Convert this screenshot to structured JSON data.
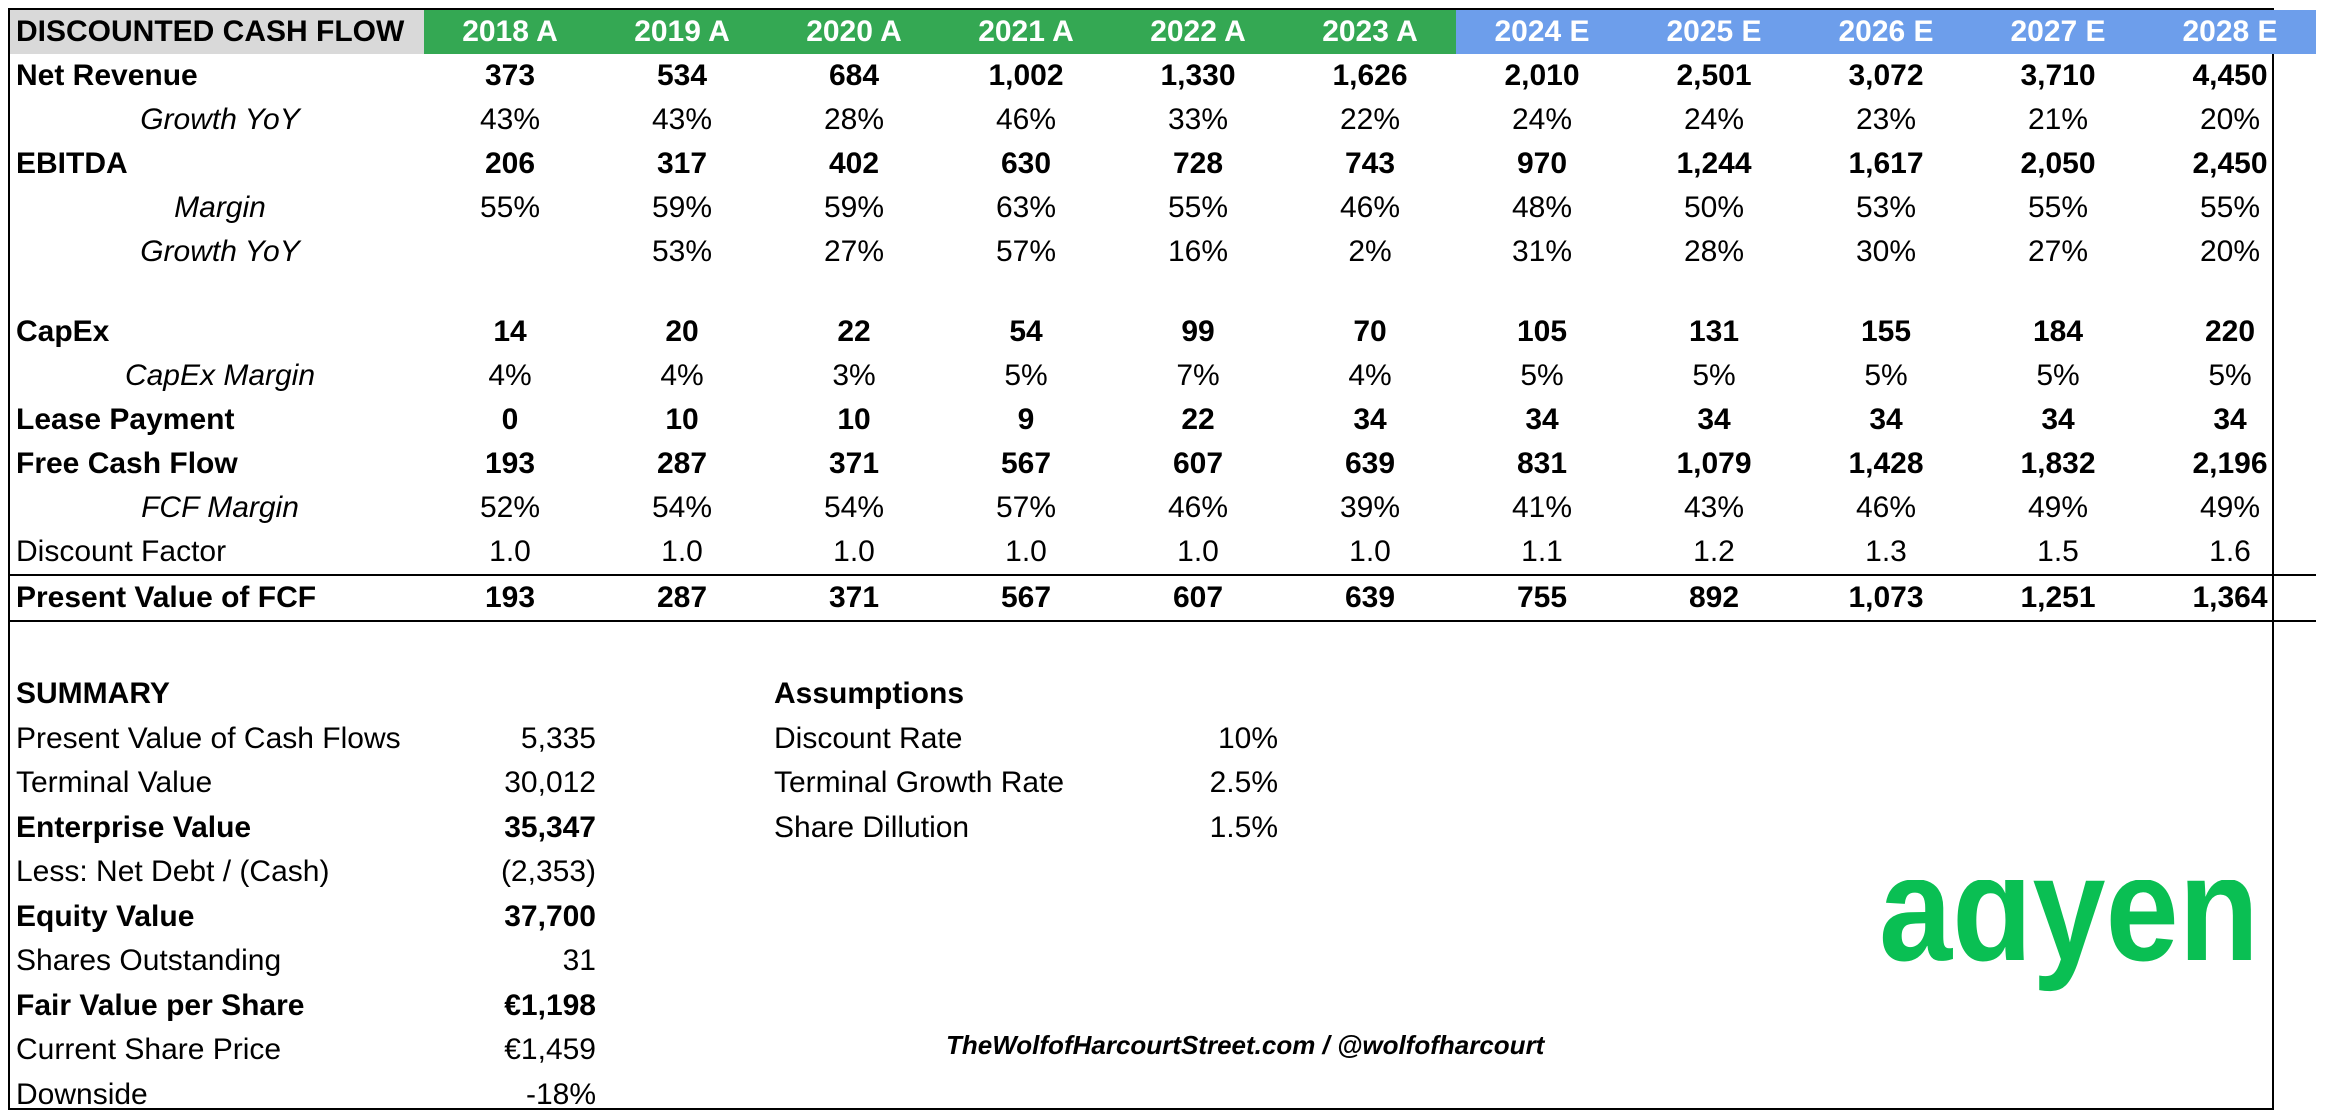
{
  "table": {
    "title": "DISCOUNTED CASH FLOW",
    "years": [
      {
        "label": "2018 A",
        "type": "actual"
      },
      {
        "label": "2019 A",
        "type": "actual"
      },
      {
        "label": "2020 A",
        "type": "actual"
      },
      {
        "label": "2021 A",
        "type": "actual"
      },
      {
        "label": "2022 A",
        "type": "actual"
      },
      {
        "label": "2023 A",
        "type": "actual"
      },
      {
        "label": "2024 E",
        "type": "estimate"
      },
      {
        "label": "2025 E",
        "type": "estimate"
      },
      {
        "label": "2026 E",
        "type": "estimate"
      },
      {
        "label": "2027 E",
        "type": "estimate"
      },
      {
        "label": "2028 E",
        "type": "estimate"
      }
    ],
    "rows": [
      {
        "label": "Net Revenue",
        "style": "bold",
        "values": [
          "373",
          "534",
          "684",
          "1,002",
          "1,330",
          "1,626",
          "2,010",
          "2,501",
          "3,072",
          "3,710",
          "4,450"
        ]
      },
      {
        "label": "Growth YoY",
        "style": "sub",
        "values": [
          "43%",
          "43%",
          "28%",
          "46%",
          "33%",
          "22%",
          "24%",
          "24%",
          "23%",
          "21%",
          "20%"
        ]
      },
      {
        "label": "EBITDA",
        "style": "bold",
        "values": [
          "206",
          "317",
          "402",
          "630",
          "728",
          "743",
          "970",
          "1,244",
          "1,617",
          "2,050",
          "2,450"
        ]
      },
      {
        "label": "Margin",
        "style": "sub",
        "values": [
          "55%",
          "59%",
          "59%",
          "63%",
          "55%",
          "46%",
          "48%",
          "50%",
          "53%",
          "55%",
          "55%"
        ]
      },
      {
        "label": "Growth YoY",
        "style": "sub",
        "values": [
          "",
          "53%",
          "27%",
          "57%",
          "16%",
          "2%",
          "31%",
          "28%",
          "30%",
          "27%",
          "20%"
        ]
      },
      {
        "label": "",
        "style": "spacer",
        "values": [
          "",
          "",
          "",
          "",
          "",
          "",
          "",
          "",
          "",
          "",
          ""
        ]
      },
      {
        "label": "CapEx",
        "style": "bold",
        "values": [
          "14",
          "20",
          "22",
          "54",
          "99",
          "70",
          "105",
          "131",
          "155",
          "184",
          "220"
        ]
      },
      {
        "label": "CapEx Margin",
        "style": "sub",
        "values": [
          "4%",
          "4%",
          "3%",
          "5%",
          "7%",
          "4%",
          "5%",
          "5%",
          "5%",
          "5%",
          "5%"
        ]
      },
      {
        "label": "Lease Payment",
        "style": "bold",
        "values": [
          "0",
          "10",
          "10",
          "9",
          "22",
          "34",
          "34",
          "34",
          "34",
          "34",
          "34"
        ]
      },
      {
        "label": "Free Cash Flow",
        "style": "bold",
        "values": [
          "193",
          "287",
          "371",
          "567",
          "607",
          "639",
          "831",
          "1,079",
          "1,428",
          "1,832",
          "2,196"
        ]
      },
      {
        "label": "FCF Margin",
        "style": "sub",
        "values": [
          "52%",
          "54%",
          "54%",
          "57%",
          "46%",
          "39%",
          "41%",
          "43%",
          "46%",
          "49%",
          "49%"
        ]
      },
      {
        "label": "Discount Factor",
        "style": "plain",
        "values": [
          "1.0",
          "1.0",
          "1.0",
          "1.0",
          "1.0",
          "1.0",
          "1.1",
          "1.2",
          "1.3",
          "1.5",
          "1.6"
        ]
      },
      {
        "label": "Present Value of FCF",
        "style": "pv",
        "values": [
          "193",
          "287",
          "371",
          "567",
          "607",
          "639",
          "755",
          "892",
          "1,073",
          "1,251",
          "1,364"
        ]
      }
    ]
  },
  "summary": {
    "heading": "SUMMARY",
    "rows": [
      {
        "label": "Present Value of Cash Flows",
        "value": "5,335",
        "bold": false
      },
      {
        "label": "Terminal Value",
        "value": "30,012",
        "bold": false
      },
      {
        "label": "Enterprise Value",
        "value": "35,347",
        "bold": true
      },
      {
        "label": "Less: Net Debt / (Cash)",
        "value": "(2,353)",
        "bold": false
      },
      {
        "label": "Equity Value",
        "value": "37,700",
        "bold": true
      },
      {
        "label": "Shares Outstanding",
        "value": "31",
        "bold": false
      },
      {
        "label": "Fair Value per Share",
        "value": "€1,198",
        "bold": true
      },
      {
        "label": "Current Share Price",
        "value": "€1,459",
        "bold": false
      },
      {
        "label": "Downside",
        "value": "-18%",
        "bold": false
      }
    ]
  },
  "assumptions": {
    "heading": "Assumptions",
    "rows": [
      {
        "label": "Discount Rate",
        "value": "10%"
      },
      {
        "label": "Terminal Growth Rate",
        "value": "2.5%"
      },
      {
        "label": "Share Dillution",
        "value": "1.5%"
      }
    ]
  },
  "credit": "TheWolfofHarcourtStreet.com / @wolfofharcourt",
  "logo": {
    "text": "adyen",
    "color": "#0abf53"
  },
  "colors": {
    "actual_header": "#34a853",
    "estimate_header": "#6d9eeb",
    "title_header": "#d9d9d9"
  }
}
